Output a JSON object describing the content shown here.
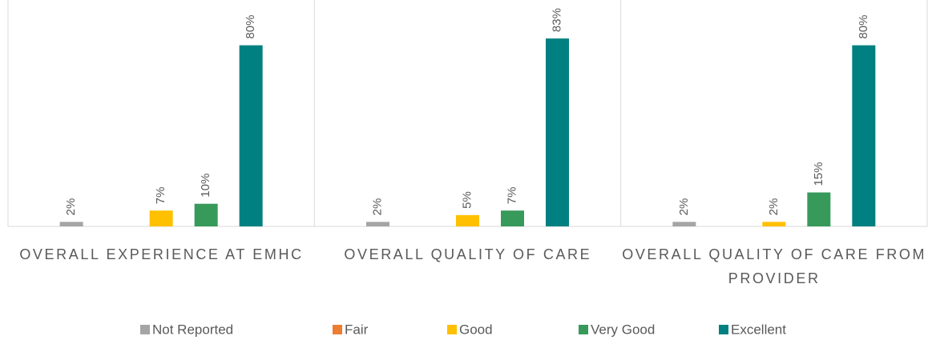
{
  "chart_data": {
    "type": "bar",
    "categories": [
      "OVERALL EXPERIENCE AT EMHC",
      "OVERALL QUALITY OF CARE",
      "OVERALL QUALITY OF CARE FROM PROVIDER"
    ],
    "series": [
      {
        "name": "Not Reported",
        "color": "#a5a5a5",
        "values": [
          2,
          2,
          2
        ],
        "value_labels": [
          "2%",
          "2%",
          "2%"
        ]
      },
      {
        "name": "Fair",
        "color": "#ed7d31",
        "values": [
          null,
          null,
          null
        ]
      },
      {
        "name": "Good",
        "color": "#ffc000",
        "values": [
          7,
          5,
          2
        ],
        "value_labels": [
          "7%",
          "5%",
          "2%"
        ]
      },
      {
        "name": "Very Good",
        "color": "#379a5b",
        "values": [
          10,
          7,
          15
        ],
        "value_labels": [
          "10%",
          "7%",
          "15%"
        ]
      },
      {
        "name": "Excellent",
        "color": "#008080",
        "values": [
          80,
          83,
          80
        ],
        "value_labels": [
          "80%",
          "83%",
          "80%"
        ]
      }
    ],
    "ylim": [
      0,
      100
    ]
  }
}
